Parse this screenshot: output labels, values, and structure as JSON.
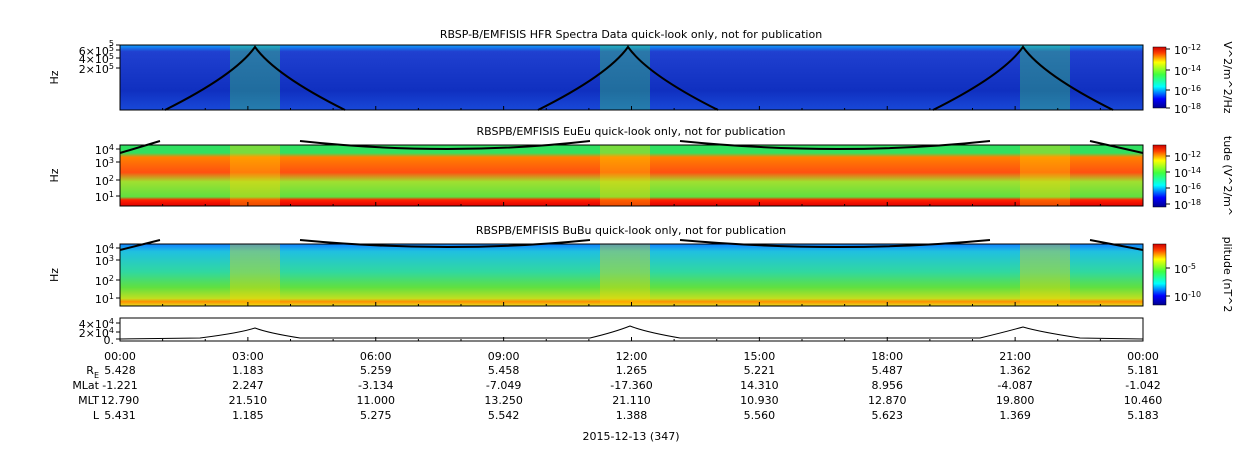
{
  "panels": [
    {
      "title": "RBSP-B/EMFISIS  HFR Spectra Data quick-look only, not for publication",
      "ylabel": "Hz",
      "yticks": [
        {
          "exp": "5"
        },
        {
          "mant": "6×10",
          "exp": "5"
        },
        {
          "mant": "4×10",
          "exp": "5"
        },
        {
          "mant": "2×10",
          "exp": "5"
        }
      ],
      "colorbar_label": "V^2/m^2/Hz",
      "colorbar_ticks": [
        {
          "mant": "10",
          "exp": "-12"
        },
        {
          "mant": "10",
          "exp": "-14"
        },
        {
          "mant": "10",
          "exp": "-16"
        },
        {
          "mant": "10",
          "exp": "-18"
        }
      ]
    },
    {
      "title": "RBSPB/EMFISIS  EuEu quick-look only, not for publication",
      "ylabel": "Hz",
      "yticks": [
        {
          "mant": "10",
          "exp": "4"
        },
        {
          "mant": "10",
          "exp": "3"
        },
        {
          "mant": "10",
          "exp": "2"
        },
        {
          "mant": "10",
          "exp": "1"
        }
      ],
      "colorbar_label": "tude (V^2/m^",
      "colorbar_ticks": [
        {
          "mant": "10",
          "exp": "-12"
        },
        {
          "mant": "10",
          "exp": "-14"
        },
        {
          "mant": "10",
          "exp": "-16"
        },
        {
          "mant": "10",
          "exp": "-18"
        }
      ]
    },
    {
      "title": "RBSPB/EMFISIS  BuBu quick-look only, not for publication",
      "ylabel": "Hz",
      "yticks": [
        {
          "mant": "10",
          "exp": "4"
        },
        {
          "mant": "10",
          "exp": "3"
        },
        {
          "mant": "10",
          "exp": "2"
        },
        {
          "mant": "10",
          "exp": "1"
        }
      ],
      "colorbar_label": "plitude (nT^2",
      "colorbar_ticks": [
        {
          "mant": "10",
          "exp": "-5"
        },
        {
          "mant": "10",
          "exp": "-10"
        }
      ]
    },
    {
      "yticks": [
        {
          "mant": "4×10",
          "exp": "4"
        },
        {
          "mant": "2×10",
          "exp": "4"
        },
        {
          "mant": "0."
        }
      ]
    }
  ],
  "xticks": [
    "00:00",
    "03:00",
    "06:00",
    "09:00",
    "12:00",
    "15:00",
    "18:00",
    "21:00",
    "00:00"
  ],
  "ephemeris": [
    {
      "label": "R",
      "label_sub": "E",
      "values": [
        "5.428",
        "1.183",
        "5.259",
        "5.458",
        "1.265",
        "5.221",
        "5.487",
        "1.362",
        "5.181"
      ]
    },
    {
      "label": "MLat",
      "values": [
        "-1.221",
        "2.247",
        "-3.134",
        "-7.049",
        "-17.360",
        "14.310",
        "8.956",
        "-4.087",
        "-1.042"
      ]
    },
    {
      "label": "MLT",
      "values": [
        "12.790",
        "21.510",
        "11.000",
        "13.250",
        "21.110",
        "10.930",
        "12.870",
        "19.800",
        "10.460"
      ]
    },
    {
      "label": "L",
      "values": [
        "5.431",
        "1.185",
        "5.275",
        "5.542",
        "1.388",
        "5.560",
        "5.623",
        "1.369",
        "5.183"
      ]
    }
  ],
  "date": "2015-12-13 (347)"
}
